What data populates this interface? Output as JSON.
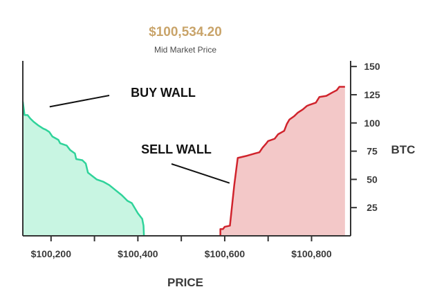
{
  "header": {
    "mid_price": "$100,534.20",
    "mid_price_label": "Mid Market Price"
  },
  "chart_data": {
    "type": "area",
    "xlabel": "PRICE",
    "ylabel": "BTC",
    "xlim": [
      100135,
      100890
    ],
    "ylim": [
      0,
      155
    ],
    "x_ticks": [
      100200,
      100300,
      100400,
      100500,
      100600,
      100700,
      100800
    ],
    "x_tick_labels": [
      {
        "value": 100200,
        "label": "$100,200"
      },
      {
        "value": 100400,
        "label": "$100,400"
      },
      {
        "value": 100600,
        "label": "$100,600"
      },
      {
        "value": 100800,
        "label": "$100,800"
      }
    ],
    "y_ticks": [
      25,
      50,
      75,
      100,
      125,
      150
    ],
    "y_tick_labels": [
      "25",
      "50",
      "75",
      "100",
      "125",
      "150"
    ],
    "colors": {
      "bid_line": "#2fd39a",
      "bid_fill": "#c8f5e2",
      "ask_line": "#d0232c",
      "ask_fill": "#f3c8c8",
      "axis": "#333333"
    },
    "series": [
      {
        "side": "bid",
        "points": [
          [
            100135,
            119
          ],
          [
            100137,
            113
          ],
          [
            100139,
            107
          ],
          [
            100146,
            107
          ],
          [
            100152,
            104
          ],
          [
            100160,
            101
          ],
          [
            100170,
            98
          ],
          [
            100182,
            95
          ],
          [
            100188,
            94
          ],
          [
            100196,
            92
          ],
          [
            100203,
            88
          ],
          [
            100217,
            85
          ],
          [
            100221,
            82
          ],
          [
            100236,
            80
          ],
          [
            100244,
            76
          ],
          [
            100255,
            73
          ],
          [
            100258,
            68
          ],
          [
            100272,
            67
          ],
          [
            100280,
            64
          ],
          [
            100285,
            56
          ],
          [
            100295,
            53
          ],
          [
            100305,
            50
          ],
          [
            100320,
            48
          ],
          [
            100334,
            45
          ],
          [
            100350,
            40
          ],
          [
            100363,
            36
          ],
          [
            100376,
            31
          ],
          [
            100386,
            29
          ],
          [
            100400,
            20
          ],
          [
            100410,
            15
          ],
          [
            100413,
            9
          ],
          [
            100414,
            0
          ]
        ]
      },
      {
        "side": "ask",
        "points": [
          [
            100590,
            0
          ],
          [
            100590,
            6
          ],
          [
            100596,
            6
          ],
          [
            100600,
            8
          ],
          [
            100612,
            9
          ],
          [
            100617,
            27
          ],
          [
            100622,
            45
          ],
          [
            100627,
            60
          ],
          [
            100630,
            69
          ],
          [
            100652,
            71
          ],
          [
            100670,
            73
          ],
          [
            100680,
            74
          ],
          [
            100687,
            78
          ],
          [
            100696,
            82
          ],
          [
            100700,
            84
          ],
          [
            100715,
            86
          ],
          [
            100723,
            90
          ],
          [
            100737,
            93
          ],
          [
            100743,
            99
          ],
          [
            100749,
            103
          ],
          [
            100760,
            106
          ],
          [
            100768,
            109
          ],
          [
            100780,
            112
          ],
          [
            100789,
            115
          ],
          [
            100795,
            116
          ],
          [
            100810,
            118
          ],
          [
            100818,
            123
          ],
          [
            100834,
            124
          ],
          [
            100848,
            127
          ],
          [
            100858,
            129
          ],
          [
            100864,
            132
          ],
          [
            100877,
            132
          ],
          [
            100877,
            0
          ]
        ]
      }
    ],
    "annotations": [
      {
        "text": "BUY WALL",
        "target": [
          100200,
          107
        ]
      },
      {
        "text": "SELL WALL",
        "target": [
          100627,
          48
        ]
      }
    ]
  }
}
